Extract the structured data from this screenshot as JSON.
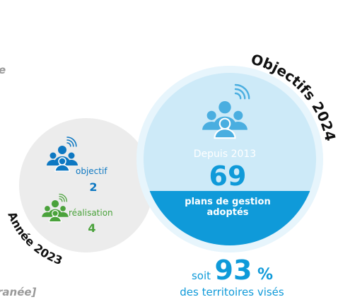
{
  "fragments": {
    "top": "e",
    "bottom": "ranée]"
  },
  "year_2023": {
    "label": "Année 2023",
    "objective": {
      "label": "objectif",
      "value": 2
    },
    "realisation": {
      "label": "réalisation",
      "value": 4
    }
  },
  "objectives_2024": {
    "label": "Objectifs 2024",
    "since": "Depuis 2013",
    "value": 69,
    "caption": [
      "plans de gestion",
      "adoptés"
    ],
    "share": {
      "prefix": "soit",
      "value": 93,
      "unit": "%",
      "caption": "des territoires visés"
    }
  }
}
